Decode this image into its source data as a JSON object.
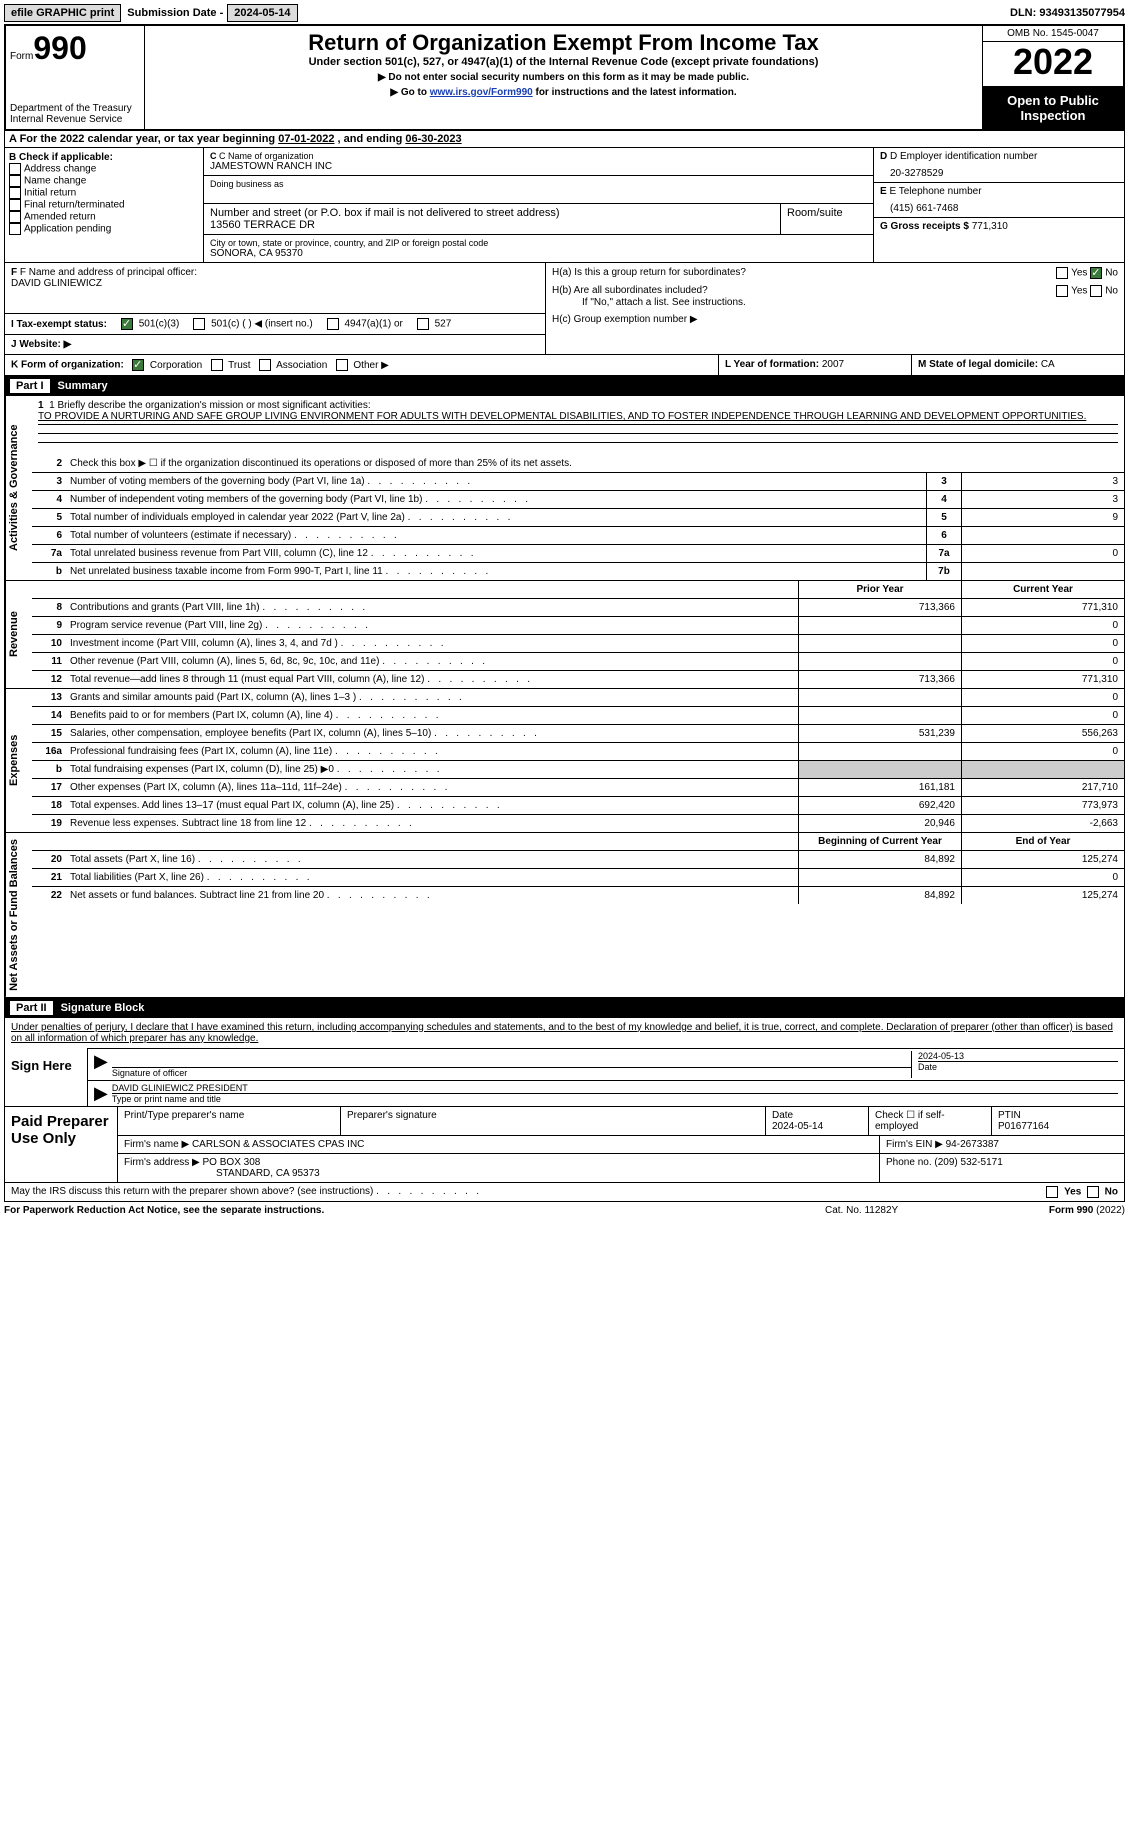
{
  "topbar": {
    "efile_btn": "efile GRAPHIC print",
    "sub_label": "Submission Date -",
    "sub_date": "2024-05-14",
    "dln_label": "DLN:",
    "dln": "93493135077954"
  },
  "header": {
    "form_small": "Form",
    "form_big": "990",
    "dept": "Department of the Treasury Internal Revenue Service",
    "title": "Return of Organization Exempt From Income Tax",
    "sub": "Under section 501(c), 527, or 4947(a)(1) of the Internal Revenue Code (except private foundations)",
    "note1": "▶ Do not enter social security numbers on this form as it may be made public.",
    "note2_pre": "▶ Go to ",
    "note2_link": "www.irs.gov/Form990",
    "note2_post": " for instructions and the latest information.",
    "omb": "OMB No. 1545-0047",
    "year": "2022",
    "open": "Open to Public Inspection"
  },
  "row_a": {
    "pre": "A For the 2022 calendar year, or tax year beginning ",
    "begin": "07-01-2022",
    "mid": " , and ending ",
    "end": "06-30-2023"
  },
  "col_b": {
    "hdr": "B Check if applicable:",
    "items": [
      "Address change",
      "Name change",
      "Initial return",
      "Final return/terminated",
      "Amended return",
      "Application pending"
    ]
  },
  "col_c": {
    "name_lbl": "C Name of organization",
    "name": "JAMESTOWN RANCH INC",
    "dba_lbl": "Doing business as",
    "dba": "",
    "street_lbl": "Number and street (or P.O. box if mail is not delivered to street address)",
    "street": "13560 TERRACE DR",
    "room_lbl": "Room/suite",
    "city_lbl": "City or town, state or province, country, and ZIP or foreign postal code",
    "city": "SONORA, CA  95370"
  },
  "col_de": {
    "d_lbl": "D Employer identification number",
    "d_val": "20-3278529",
    "e_lbl": "E Telephone number",
    "e_val": "(415) 661-7468",
    "g_lbl": "G Gross receipts $",
    "g_val": "771,310"
  },
  "block_f": {
    "f_lbl": "F Name and address of principal officer:",
    "f_val": "DAVID GLINIEWICZ"
  },
  "block_h": {
    "ha": "H(a)  Is this a group return for subordinates?",
    "hb": "H(b)  Are all subordinates included?",
    "hb_note": "If \"No,\" attach a list. See instructions.",
    "hc": "H(c)  Group exemption number ▶",
    "yes": "Yes",
    "no": "No"
  },
  "row_i": {
    "lbl": "I  Tax-exempt status:",
    "o1": "501(c)(3)",
    "o2": "501(c) (  ) ◀ (insert no.)",
    "o3": "4947(a)(1) or",
    "o4": "527"
  },
  "row_j": {
    "lbl": "J  Website: ▶"
  },
  "row_k": {
    "k_lbl": "K Form of organization:",
    "k_opts": [
      "Corporation",
      "Trust",
      "Association",
      "Other ▶"
    ],
    "l_lbl": "L Year of formation:",
    "l_val": "2007",
    "m_lbl": "M State of legal domicile:",
    "m_val": "CA"
  },
  "parts": {
    "p1": "Part I",
    "p1_title": "Summary",
    "p2": "Part II",
    "p2_title": "Signature Block"
  },
  "summary": {
    "mission_lbl": "1   Briefly describe the organization's mission or most significant activities:",
    "mission": "TO PROVIDE A NURTURING AND SAFE GROUP LIVING ENVIRONMENT FOR ADULTS WITH DEVELOPMENTAL DISABILITIES, AND TO FOSTER INDEPENDENCE THROUGH LEARNING AND DEVELOPMENT OPPORTUNITIES.",
    "line2": "Check this box ▶ ☐ if the organization discontinued its operations or disposed of more than 25% of its net assets.",
    "sides": {
      "ag": "Activities & Governance",
      "rev": "Revenue",
      "exp": "Expenses",
      "na": "Net Assets or Fund Balances"
    },
    "ag_rows": [
      {
        "n": "3",
        "d": "Number of voting members of the governing body (Part VI, line 1a)",
        "b": "3",
        "v": "3"
      },
      {
        "n": "4",
        "d": "Number of independent voting members of the governing body (Part VI, line 1b)",
        "b": "4",
        "v": "3"
      },
      {
        "n": "5",
        "d": "Total number of individuals employed in calendar year 2022 (Part V, line 2a)",
        "b": "5",
        "v": "9"
      },
      {
        "n": "6",
        "d": "Total number of volunteers (estimate if necessary)",
        "b": "6",
        "v": ""
      },
      {
        "n": "7a",
        "d": "Total unrelated business revenue from Part VIII, column (C), line 12",
        "b": "7a",
        "v": "0"
      },
      {
        "n": "b",
        "d": "Net unrelated business taxable income from Form 990-T, Part I, line 11",
        "b": "7b",
        "v": ""
      }
    ],
    "col_hdr_prior": "Prior Year",
    "col_hdr_curr": "Current Year",
    "rev_rows": [
      {
        "n": "8",
        "d": "Contributions and grants (Part VIII, line 1h)",
        "p": "713,366",
        "c": "771,310"
      },
      {
        "n": "9",
        "d": "Program service revenue (Part VIII, line 2g)",
        "p": "",
        "c": "0"
      },
      {
        "n": "10",
        "d": "Investment income (Part VIII, column (A), lines 3, 4, and 7d )",
        "p": "",
        "c": "0"
      },
      {
        "n": "11",
        "d": "Other revenue (Part VIII, column (A), lines 5, 6d, 8c, 9c, 10c, and 11e)",
        "p": "",
        "c": "0"
      },
      {
        "n": "12",
        "d": "Total revenue—add lines 8 through 11 (must equal Part VIII, column (A), line 12)",
        "p": "713,366",
        "c": "771,310"
      }
    ],
    "exp_rows": [
      {
        "n": "13",
        "d": "Grants and similar amounts paid (Part IX, column (A), lines 1–3 )",
        "p": "",
        "c": "0"
      },
      {
        "n": "14",
        "d": "Benefits paid to or for members (Part IX, column (A), line 4)",
        "p": "",
        "c": "0"
      },
      {
        "n": "15",
        "d": "Salaries, other compensation, employee benefits (Part IX, column (A), lines 5–10)",
        "p": "531,239",
        "c": "556,263"
      },
      {
        "n": "16a",
        "d": "Professional fundraising fees (Part IX, column (A), line 11e)",
        "p": "",
        "c": "0"
      },
      {
        "n": "b",
        "d": "Total fundraising expenses (Part IX, column (D), line 25) ▶0",
        "p": "shaded",
        "c": "shaded"
      },
      {
        "n": "17",
        "d": "Other expenses (Part IX, column (A), lines 11a–11d, 11f–24e)",
        "p": "161,181",
        "c": "217,710"
      },
      {
        "n": "18",
        "d": "Total expenses. Add lines 13–17 (must equal Part IX, column (A), line 25)",
        "p": "692,420",
        "c": "773,973"
      },
      {
        "n": "19",
        "d": "Revenue less expenses. Subtract line 18 from line 12",
        "p": "20,946",
        "c": "-2,663"
      }
    ],
    "col_hdr_begin": "Beginning of Current Year",
    "col_hdr_end": "End of Year",
    "na_rows": [
      {
        "n": "20",
        "d": "Total assets (Part X, line 16)",
        "p": "84,892",
        "c": "125,274"
      },
      {
        "n": "21",
        "d": "Total liabilities (Part X, line 26)",
        "p": "",
        "c": "0"
      },
      {
        "n": "22",
        "d": "Net assets or fund balances. Subtract line 21 from line 20",
        "p": "84,892",
        "c": "125,274"
      }
    ]
  },
  "sig": {
    "penalty": "Under penalties of perjury, I declare that I have examined this return, including accompanying schedules and statements, and to the best of my knowledge and belief, it is true, correct, and complete. Declaration of preparer (other than officer) is based on all information of which preparer has any knowledge.",
    "sign_here": "Sign Here",
    "sig_officer": "Signature of officer",
    "sig_date": "2024-05-13",
    "date_lbl": "Date",
    "officer_name": "DAVID GLINIEWICZ  PRESIDENT",
    "type_lbl": "Type or print name and title"
  },
  "prep": {
    "hdr": "Paid Preparer Use Only",
    "print_lbl": "Print/Type preparer's name",
    "sig_lbl": "Preparer's signature",
    "date_lbl": "Date",
    "date": "2024-05-14",
    "check_lbl": "Check ☐ if self-employed",
    "ptin_lbl": "PTIN",
    "ptin": "P01677164",
    "firm_name_lbl": "Firm's name    ▶",
    "firm_name": "CARLSON & ASSOCIATES CPAS INC",
    "firm_ein_lbl": "Firm's EIN ▶",
    "firm_ein": "94-2673387",
    "firm_addr_lbl": "Firm's address ▶",
    "firm_addr1": "PO BOX 308",
    "firm_addr2": "STANDARD, CA  95373",
    "phone_lbl": "Phone no.",
    "phone": "(209) 532-5171"
  },
  "bottom": {
    "discuss": "May the IRS discuss this return with the preparer shown above? (see instructions)",
    "paperwork": "For Paperwork Reduction Act Notice, see the separate instructions.",
    "cat": "Cat. No. 11282Y",
    "form": "Form 990 (2022)",
    "yes": "Yes",
    "no": "No"
  }
}
